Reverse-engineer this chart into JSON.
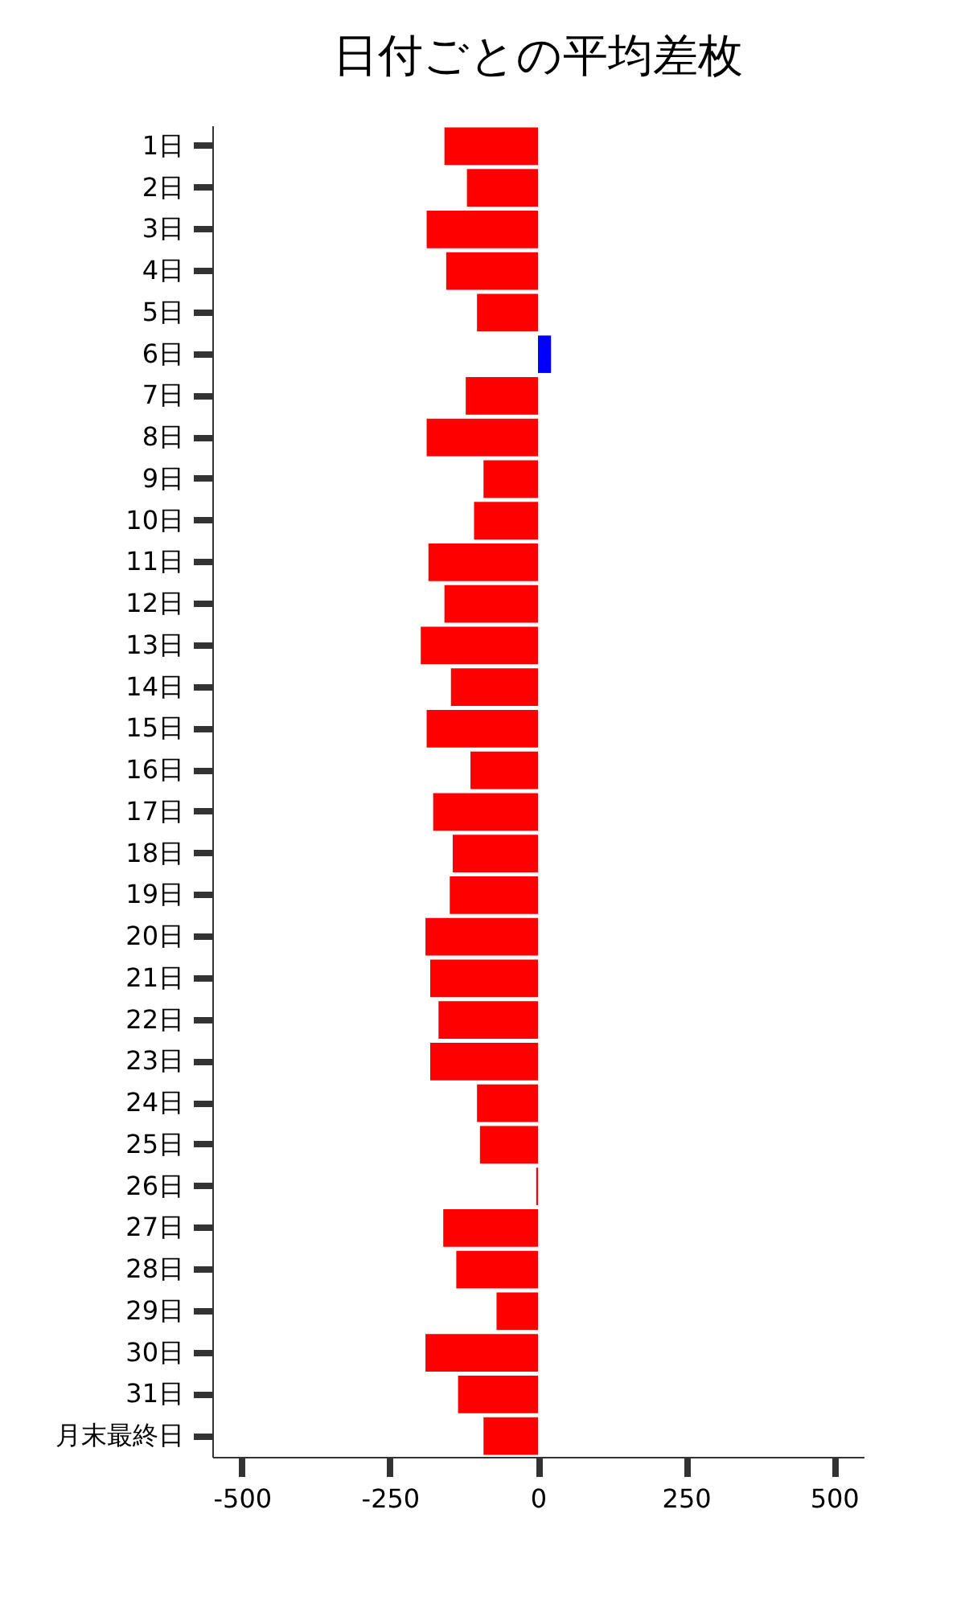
{
  "chart_data": {
    "type": "bar",
    "orientation": "horizontal",
    "title": "日付ごとの平均差枚",
    "categories": [
      "1日",
      "2日",
      "3日",
      "4日",
      "5日",
      "6日",
      "7日",
      "8日",
      "9日",
      "10日",
      "11日",
      "12日",
      "13日",
      "14日",
      "15日",
      "16日",
      "17日",
      "18日",
      "19日",
      "20日",
      "21日",
      "22日",
      "23日",
      "24日",
      "25日",
      "26日",
      "27日",
      "28日",
      "29日",
      "30日",
      "31日",
      "月末最終日"
    ],
    "values": [
      -158,
      -120,
      -188,
      -155,
      -103,
      22,
      -122,
      -188,
      -92,
      -108,
      -185,
      -158,
      -198,
      -147,
      -188,
      -114,
      -177,
      -144,
      -149,
      -190,
      -182,
      -168,
      -182,
      -103,
      -98,
      -3,
      -160,
      -138,
      -70,
      -190,
      -135,
      -92
    ],
    "colors": [
      "#ff0000",
      "#ff0000",
      "#ff0000",
      "#ff0000",
      "#ff0000",
      "#0000ff",
      "#ff0000",
      "#ff0000",
      "#ff0000",
      "#ff0000",
      "#ff0000",
      "#ff0000",
      "#ff0000",
      "#ff0000",
      "#ff0000",
      "#ff0000",
      "#ff0000",
      "#ff0000",
      "#ff0000",
      "#ff0000",
      "#ff0000",
      "#ff0000",
      "#ff0000",
      "#ff0000",
      "#ff0000",
      "#ff0000",
      "#ff0000",
      "#ff0000",
      "#ff0000",
      "#ff0000",
      "#ff0000",
      "#ff0000"
    ],
    "xlim": [
      -550,
      550
    ],
    "xticks": [
      -500,
      -250,
      0,
      250,
      500
    ],
    "grid": false
  }
}
